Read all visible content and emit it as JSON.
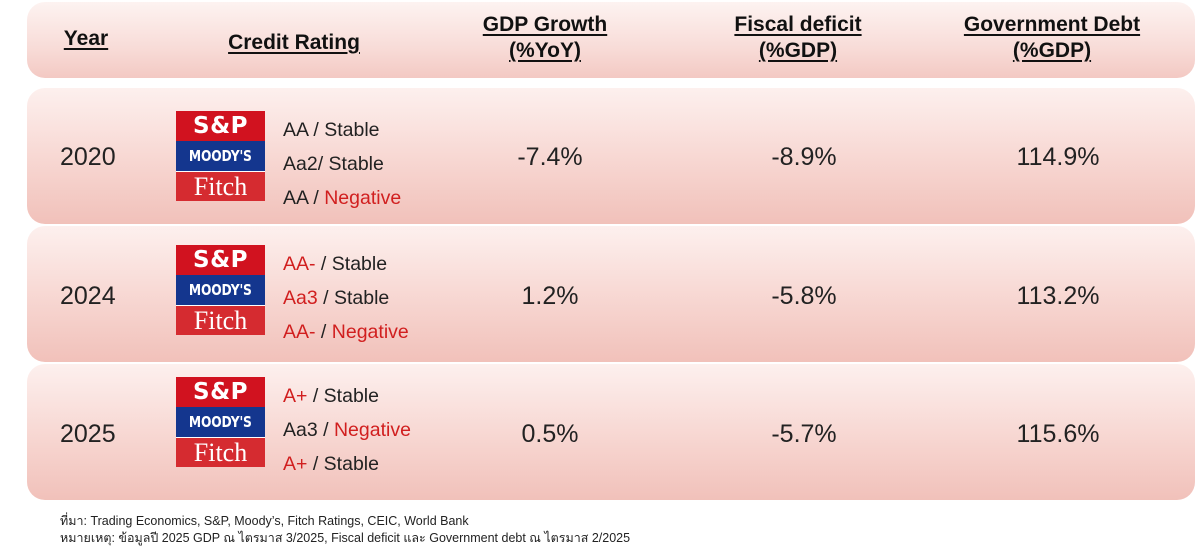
{
  "header": {
    "year": "Year",
    "credit_rating": "Credit Rating",
    "gdp_growth_line1": "GDP Growth",
    "gdp_growth_line2": "(%YoY)",
    "fiscal_deficit_line1": "Fiscal deficit",
    "fiscal_deficit_line2": "(%GDP)",
    "gov_debt_line1": "Government Debt",
    "gov_debt_line2": "(%GDP)"
  },
  "logos": {
    "sp": "S&P",
    "moodys": "MOODY'S",
    "fitch": "Fitch"
  },
  "rows": [
    {
      "year": "2020",
      "ratings": [
        {
          "grade": "AA",
          "sep": " / ",
          "outlook": "Stable",
          "grade_red": false,
          "outlook_red": false
        },
        {
          "grade": "Aa2",
          "sep": "/ ",
          "outlook": "Stable",
          "grade_red": false,
          "outlook_red": false
        },
        {
          "grade": "AA",
          "sep": " / ",
          "outlook": "Negative",
          "grade_red": false,
          "outlook_red": true
        }
      ],
      "gdp_growth": "-7.4%",
      "fiscal_deficit": "-8.9%",
      "gov_debt": "114.9%"
    },
    {
      "year": "2024",
      "ratings": [
        {
          "grade": "AA-",
          "sep": " / ",
          "outlook": "Stable",
          "grade_red": true,
          "outlook_red": false
        },
        {
          "grade": "Aa3",
          "sep": " / ",
          "outlook": "Stable",
          "grade_red": true,
          "outlook_red": false
        },
        {
          "grade": "AA-",
          "sep": " / ",
          "outlook": "Negative",
          "grade_red": true,
          "outlook_red": true
        }
      ],
      "gdp_growth": "1.2%",
      "fiscal_deficit": "-5.8%",
      "gov_debt": "113.2%"
    },
    {
      "year": "2025",
      "ratings": [
        {
          "grade": "A+",
          "sep": " / ",
          "outlook": "Stable",
          "grade_red": true,
          "outlook_red": false
        },
        {
          "grade": "Aa3",
          "sep": " / ",
          "outlook": "Negative",
          "grade_red": false,
          "outlook_red": true
        },
        {
          "grade": "A+",
          "sep": " / ",
          "outlook": "Stable",
          "grade_red": true,
          "outlook_red": false
        }
      ],
      "gdp_growth": "0.5%",
      "fiscal_deficit": "-5.7%",
      "gov_debt": "115.6%"
    }
  ],
  "footnotes": {
    "source": "ที่มา: Trading Economics, S&P, Moody’s, Fitch Ratings, CEIC, World Bank",
    "note": "หมายเหตุ: ข้อมูลปี 2025  GDP ณ ไตรมาส 3/2025,  Fiscal deficit และ Government debt ณ ไตรมาส 2/2025"
  },
  "colors": {
    "accent_red": "#d11f1f",
    "sp_red": "#d1121f",
    "moodys_blue": "#14368e",
    "fitch_red": "#d52b30"
  }
}
